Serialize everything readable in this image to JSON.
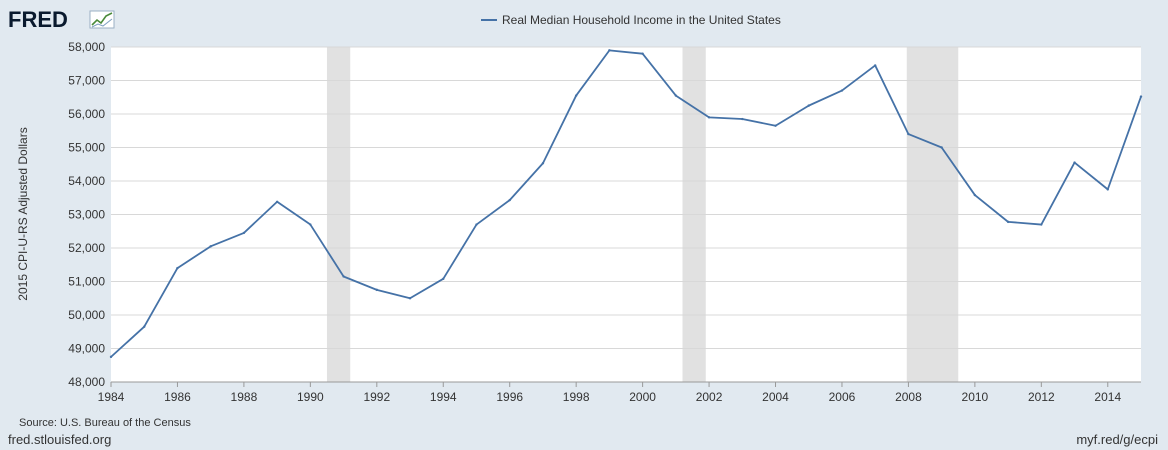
{
  "logo": {
    "text": "FRED",
    "icon": "fred-graph-icon"
  },
  "footer": {
    "source": "Source: U.S. Bureau of the Census",
    "site": "fred.stlouisfed.org",
    "short_link": "myf.red/g/ecpi"
  },
  "colors": {
    "background": "#e1e9f0",
    "plot_background": "#ffffff",
    "series_line": "#4572a7",
    "recession_shade": "#e1e1e1",
    "grid": "#d8d8d8",
    "text": "#333333"
  },
  "chart_data": {
    "type": "line",
    "title": "",
    "xlabel": "",
    "ylabel": "2015 CPI-U-RS Adjusted Dollars",
    "xlim": [
      1984,
      2015
    ],
    "ylim": [
      48000,
      58000
    ],
    "grid": true,
    "legend_position": "top-center",
    "x_ticks": [
      1984,
      1986,
      1988,
      1990,
      1992,
      1994,
      1996,
      1998,
      2000,
      2002,
      2004,
      2006,
      2008,
      2010,
      2012,
      2014
    ],
    "y_ticks": [
      48000,
      49000,
      50000,
      51000,
      52000,
      53000,
      54000,
      55000,
      56000,
      57000,
      58000
    ],
    "y_tick_labels": [
      "48,000",
      "49,000",
      "50,000",
      "51,000",
      "52,000",
      "53,000",
      "54,000",
      "55,000",
      "56,000",
      "57,000",
      "58,000"
    ],
    "recessions": [
      {
        "start": 1990.5,
        "end": 1991.2
      },
      {
        "start": 2001.2,
        "end": 2001.9
      },
      {
        "start": 2007.95,
        "end": 2009.5
      }
    ],
    "series": [
      {
        "name": "Real Median Household Income in the United States",
        "x": [
          1984,
          1985,
          1986,
          1987,
          1988,
          1989,
          1990,
          1991,
          1992,
          1993,
          1994,
          1995,
          1996,
          1997,
          1998,
          1999,
          2000,
          2001,
          2002,
          2003,
          2004,
          2005,
          2006,
          2007,
          2008,
          2009,
          2010,
          2011,
          2012,
          2013,
          2014,
          2015
        ],
        "values": [
          48750,
          49650,
          51400,
          52050,
          52450,
          53380,
          52700,
          51150,
          50750,
          50500,
          51080,
          52700,
          53430,
          54530,
          56550,
          57900,
          57800,
          56550,
          55900,
          55850,
          55650,
          56250,
          56700,
          57450,
          55400,
          55000,
          53580,
          52780,
          52700,
          54550,
          53750,
          56520
        ]
      }
    ]
  }
}
